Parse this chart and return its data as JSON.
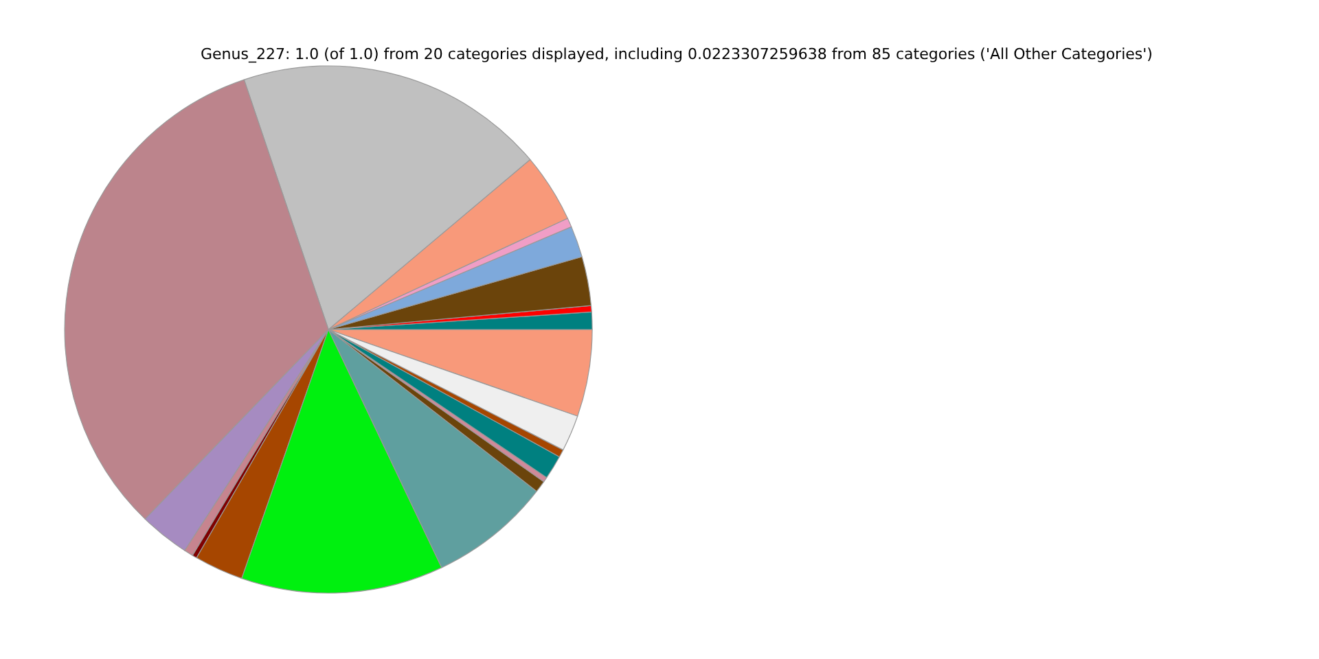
{
  "chart_data": {
    "type": "pie",
    "title": "Genus_227: 1.0 (of 1.0) from 20 categories displayed, including 0.0223307259638 from 85 categories ('All Other Categories')",
    "categories": [
      null,
      null,
      null,
      null,
      null,
      null,
      null,
      null,
      null,
      null,
      null,
      null,
      null,
      null,
      null,
      null,
      null,
      null,
      null,
      null
    ],
    "values": [
      5.33,
      1.06,
      0.39,
      3.0,
      1.92,
      0.56,
      4.22,
      19.03,
      32.59,
      3.06,
      0.56,
      0.28,
      3.0,
      12.39,
      7.42,
      0.72,
      0.31,
      1.47,
      0.47,
      2.22
    ],
    "colors": [
      "#f8997a",
      "#008080",
      "#ff0000",
      "#6b440b",
      "#7ea9db",
      "#f09ec6",
      "#f8997a",
      "#c0c0c0",
      "#bc848c",
      "#a68bc1",
      "#c7848f",
      "#800000",
      "#a64600",
      "#00f00f",
      "#5f9f9f",
      "#6b440b",
      "#d08a9a",
      "#008080",
      "#a64600",
      "#efefef"
    ],
    "legend": false
  }
}
